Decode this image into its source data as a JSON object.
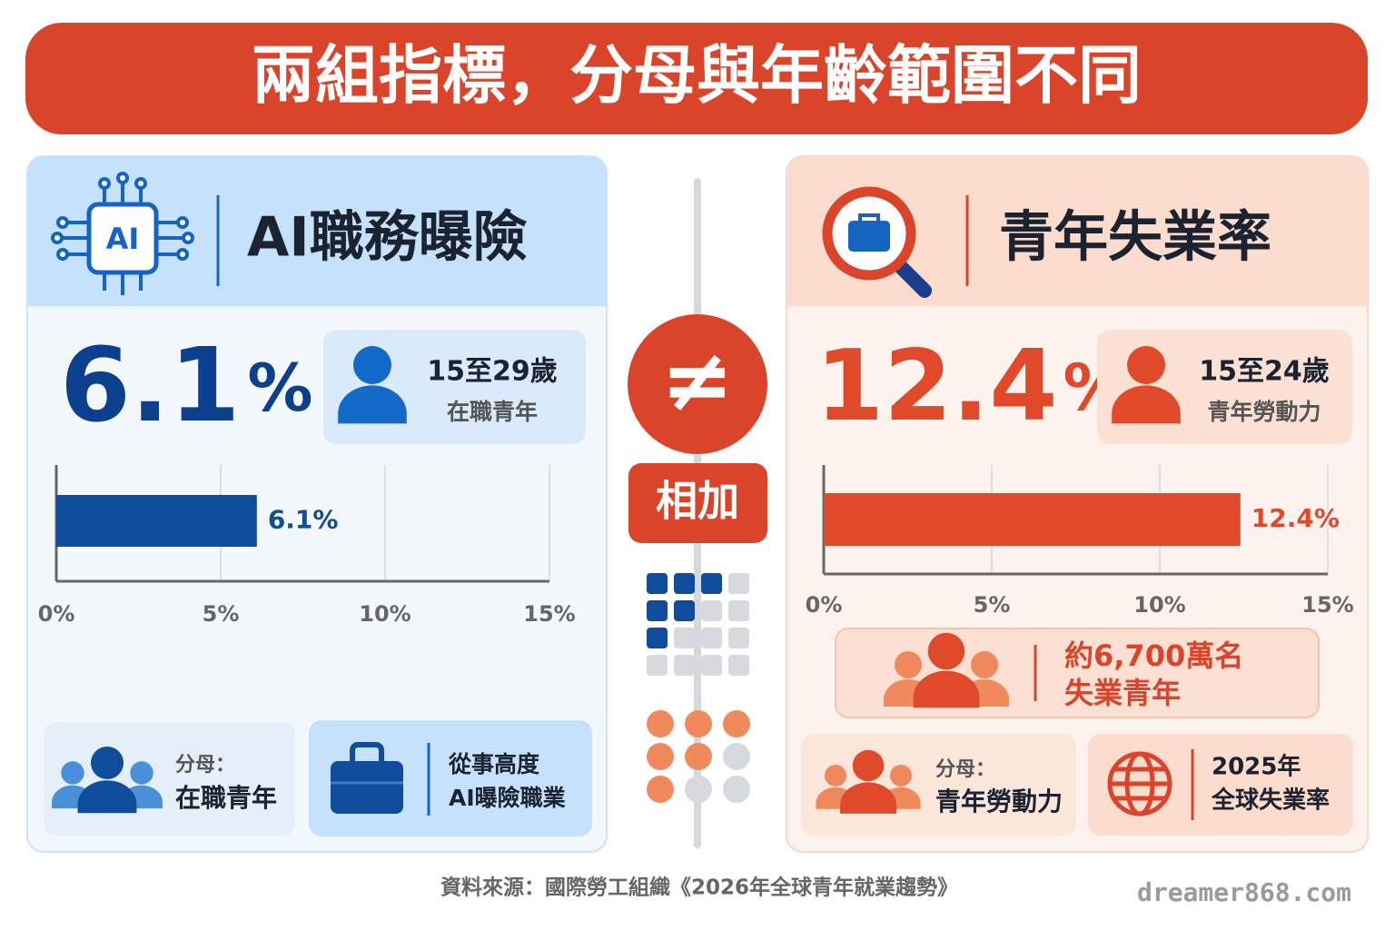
{
  "title": "兩組指標，分母與年齡範圍不同",
  "left": {
    "chip_label": "AI",
    "heading": "AI職務曝險",
    "headline_value": "6.1",
    "headline_unit": "%",
    "age": "15至29歲",
    "group": "在職青年",
    "denominator_label": "分母：",
    "denominator": "在職青年",
    "scope_line1": "從事高度",
    "scope_line2": "AI曝險職業"
  },
  "middle": {
    "not_equal": "≠",
    "no_add": "相加"
  },
  "right": {
    "heading": "青年失業率",
    "headline_value": "12.4",
    "headline_unit": "%",
    "age": "15至24歲",
    "group": "青年勞動力",
    "count_line1": "約6,700萬名",
    "count_line2": "失業青年",
    "denominator_label": "分母：",
    "denominator": "青年勞動力",
    "scope_line1": "2025年",
    "scope_line2": "全球失業率"
  },
  "chart_data": [
    {
      "type": "bar",
      "orientation": "horizontal",
      "categories": [
        null
      ],
      "values": [
        6.1
      ],
      "value_labels": [
        "6.1%"
      ],
      "color": "#0f4c9c",
      "xlim": [
        0,
        15
      ],
      "xticks": [
        {
          "value": 0,
          "label": "0%"
        },
        {
          "value": 5,
          "label": "5%"
        },
        {
          "value": 10,
          "label": "10%"
        },
        {
          "value": 15,
          "label": "15%"
        }
      ],
      "grid": true
    },
    {
      "type": "bar",
      "orientation": "horizontal",
      "categories": [
        null
      ],
      "values": [
        12.4
      ],
      "value_labels": [
        "12.4%"
      ],
      "color": "#e04a2a",
      "xlim": [
        0,
        15
      ],
      "xticks": [
        {
          "value": 0,
          "label": "0%"
        },
        {
          "value": 5,
          "label": "5%"
        },
        {
          "value": 10,
          "label": "10%"
        },
        {
          "value": 15,
          "label": "15%"
        }
      ],
      "grid": true
    }
  ],
  "footer": {
    "source": "資料來源：國際勞工組織《2026年全球青年就業趨勢》",
    "watermark": "dreamer868.com"
  }
}
